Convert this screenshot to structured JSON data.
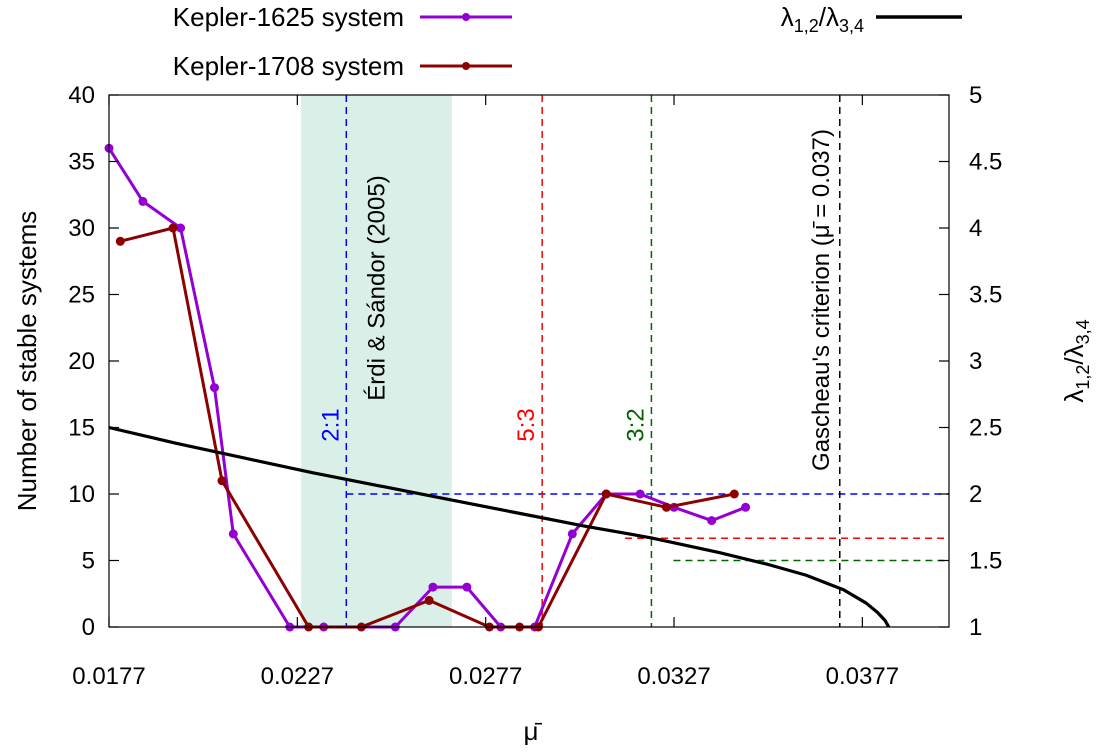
{
  "chart_data": {
    "type": "line",
    "xlabel": "μ̄",
    "ylabel_left": "Number of stable systems",
    "ylabel_right": "λ1,2/λ3,4",
    "xlim": [
      0.0177,
      0.04
    ],
    "ylim_left": [
      0,
      40
    ],
    "ylim_right": [
      1,
      5
    ],
    "x_ticks": [
      0.0177,
      0.0227,
      0.0277,
      0.0327,
      0.0377
    ],
    "x_tick_labels": [
      "0.0177",
      "0.0227",
      "0.0277",
      "0.0327",
      "0.0377"
    ],
    "y_ticks_left": [
      0,
      5,
      10,
      15,
      20,
      25,
      30,
      35,
      40
    ],
    "y_tick_labels_left": [
      "0",
      "5",
      "10",
      "15",
      "20",
      "25",
      "30",
      "35",
      "40"
    ],
    "y_ticks_right": [
      1,
      1.5,
      2,
      2.5,
      3,
      3.5,
      4,
      4.5,
      5
    ],
    "y_tick_labels_right": [
      "1",
      "1.5",
      "2",
      "2.5",
      "3",
      "3.5",
      "4",
      "4.5",
      "5"
    ],
    "legend": [
      {
        "label": "Kepler-1625 system",
        "color": "#9400d3",
        "marker": "circle"
      },
      {
        "label": "Kepler-1708 system",
        "color": "#8b0000",
        "marker": "circle"
      },
      {
        "label": "λ1,2/λ3,4",
        "color": "#000000",
        "marker": "none"
      }
    ],
    "series": [
      {
        "name": "Kepler-1625 system",
        "axis": "left",
        "color": "#9400d3",
        "x": [
          0.0177,
          0.0186,
          0.0196,
          0.0205,
          0.021,
          0.0225,
          0.0234,
          0.0253,
          0.0263,
          0.0272,
          0.0281,
          0.029,
          0.03,
          0.0309,
          0.0318,
          0.0327,
          0.0337,
          0.0346
        ],
        "values": [
          36,
          32,
          30,
          18,
          7,
          0,
          0,
          0,
          3,
          3,
          0,
          0,
          7,
          10,
          10,
          9,
          8,
          9
        ]
      },
      {
        "name": "Kepler-1708 system",
        "axis": "left",
        "color": "#8b0000",
        "x": [
          0.018,
          0.0194,
          0.0207,
          0.023,
          0.0244,
          0.0262,
          0.0278,
          0.0286,
          0.0291,
          0.0309,
          0.0325,
          0.0343
        ],
        "values": [
          29,
          30,
          11,
          0,
          0,
          2,
          0,
          0,
          0,
          10,
          9,
          10
        ]
      },
      {
        "name": "λ1,2/λ3,4",
        "axis": "right",
        "color": "#000000",
        "x": [
          0.0177,
          0.0195,
          0.0213,
          0.0231,
          0.0249,
          0.0267,
          0.0285,
          0.0303,
          0.0321,
          0.0339,
          0.0352,
          0.0362,
          0.0372,
          0.0378,
          0.0381,
          0.0383,
          0.0384
        ],
        "values": [
          2.5,
          2.38,
          2.27,
          2.16,
          2.06,
          1.96,
          1.86,
          1.76,
          1.67,
          1.56,
          1.47,
          1.39,
          1.28,
          1.18,
          1.11,
          1.05,
          1.0
        ]
      }
    ],
    "resonances": [
      {
        "label": "2:1",
        "x": 0.024,
        "y_right": 2.0,
        "color": "#0000ff"
      },
      {
        "label": "5:3",
        "x": 0.0292,
        "y_right": 1.667,
        "color": "#ff0000"
      },
      {
        "label": "3:2",
        "x": 0.0321,
        "y_right": 1.5,
        "color": "#006400"
      }
    ],
    "criterion": {
      "label": "Gascheau's criterion (μ̄ = 0.037)",
      "x": 0.0371,
      "color": "#000000"
    },
    "band": {
      "label": "Érdi & Sándor (2005)",
      "x_range": [
        0.0228,
        0.0268
      ],
      "color": "#d9efe8"
    }
  }
}
